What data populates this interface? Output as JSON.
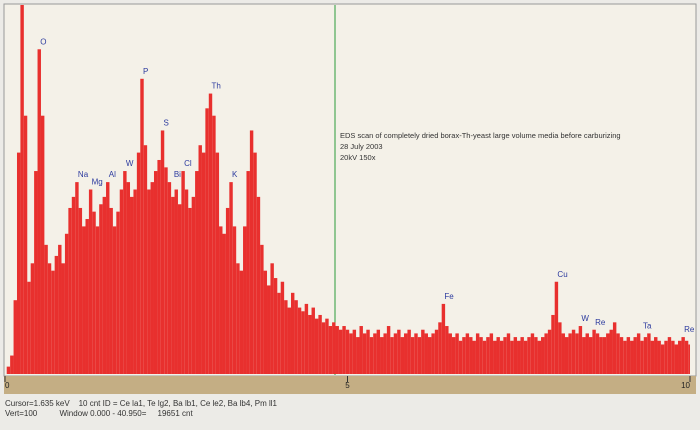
{
  "chart_data": {
    "type": "area",
    "annotation": [
      "EDS scan of completely dried borax-Th-yeast large volume media before carburizing",
      "28 July 2003",
      "20kV 150x"
    ],
    "footer": [
      "Cursor=1.635 keV    10 cnt ID = Ce la1, Te lg2, Ba lb1, Ce le2, Ba lb4, Pm ll1",
      "Vert=100          Window 0.000 - 40.950=     19651 cnt"
    ],
    "xlim": [
      0,
      10
    ],
    "xticks": [
      0,
      5,
      10
    ],
    "ylim": [
      0,
      100
    ],
    "color": "#e8302e",
    "label_color": "#2b3a9e",
    "x": [
      0,
      0.05,
      0.1,
      0.15,
      0.2,
      0.25,
      0.3,
      0.35,
      0.4,
      0.45,
      0.5,
      0.55,
      0.6,
      0.65,
      0.7,
      0.75,
      0.8,
      0.85,
      0.9,
      0.95,
      1,
      1.05,
      1.1,
      1.15,
      1.2,
      1.25,
      1.3,
      1.35,
      1.4,
      1.45,
      1.5,
      1.55,
      1.6,
      1.65,
      1.7,
      1.75,
      1.8,
      1.85,
      1.9,
      1.95,
      2,
      2.05,
      2.1,
      2.15,
      2.2,
      2.25,
      2.3,
      2.35,
      2.4,
      2.45,
      2.5,
      2.55,
      2.6,
      2.65,
      2.7,
      2.75,
      2.8,
      2.85,
      2.9,
      2.95,
      3,
      3.05,
      3.1,
      3.15,
      3.2,
      3.25,
      3.3,
      3.35,
      3.4,
      3.45,
      3.5,
      3.55,
      3.6,
      3.65,
      3.7,
      3.75,
      3.8,
      3.85,
      3.9,
      3.95,
      4,
      4.05,
      4.1,
      4.15,
      4.2,
      4.25,
      4.3,
      4.35,
      4.4,
      4.45,
      4.5,
      4.55,
      4.6,
      4.65,
      4.7,
      4.75,
      4.8,
      4.85,
      4.9,
      4.95,
      5,
      5.05,
      5.1,
      5.15,
      5.2,
      5.25,
      5.3,
      5.35,
      5.4,
      5.45,
      5.5,
      5.55,
      5.6,
      5.65,
      5.7,
      5.75,
      5.8,
      5.85,
      5.9,
      5.95,
      6,
      6.05,
      6.1,
      6.15,
      6.2,
      6.25,
      6.3,
      6.35,
      6.4,
      6.45,
      6.5,
      6.55,
      6.6,
      6.65,
      6.7,
      6.75,
      6.8,
      6.85,
      6.9,
      6.95,
      7,
      7.05,
      7.1,
      7.15,
      7.2,
      7.25,
      7.3,
      7.35,
      7.4,
      7.45,
      7.5,
      7.55,
      7.6,
      7.65,
      7.7,
      7.75,
      7.8,
      7.85,
      7.9,
      7.95,
      8,
      8.05,
      8.1,
      8.15,
      8.2,
      8.25,
      8.3,
      8.35,
      8.4,
      8.45,
      8.5,
      8.55,
      8.6,
      8.65,
      8.7,
      8.75,
      8.8,
      8.85,
      8.9,
      8.95,
      9,
      9.05,
      9.1,
      9.15,
      9.2,
      9.25,
      9.3,
      9.35,
      9.4,
      9.45,
      9.5,
      9.55,
      9.6,
      9.65,
      9.7,
      9.75,
      9.8,
      9.85,
      9.9,
      9.95,
      10
    ],
    "values": [
      0,
      2,
      5,
      20,
      60,
      100,
      70,
      25,
      30,
      55,
      88,
      70,
      35,
      30,
      28,
      32,
      35,
      30,
      38,
      45,
      48,
      52,
      45,
      40,
      42,
      50,
      44,
      40,
      46,
      48,
      52,
      45,
      40,
      44,
      50,
      55,
      52,
      48,
      50,
      60,
      80,
      62,
      50,
      52,
      55,
      58,
      66,
      56,
      52,
      48,
      50,
      46,
      55,
      50,
      45,
      48,
      55,
      62,
      60,
      72,
      76,
      70,
      60,
      40,
      38,
      45,
      52,
      40,
      30,
      28,
      40,
      55,
      66,
      60,
      48,
      35,
      28,
      24,
      30,
      26,
      22,
      25,
      20,
      18,
      22,
      20,
      18,
      17,
      19,
      16,
      18,
      15,
      16,
      14,
      15,
      13,
      14,
      13,
      12,
      13,
      12,
      11,
      12,
      10,
      13,
      11,
      12,
      10,
      11,
      12,
      10,
      11,
      13,
      10,
      11,
      12,
      10,
      11,
      12,
      10,
      11,
      10,
      12,
      11,
      10,
      11,
      12,
      14,
      19,
      13,
      11,
      10,
      11,
      9,
      10,
      11,
      10,
      9,
      11,
      10,
      9,
      10,
      11,
      9,
      10,
      9,
      10,
      11,
      9,
      10,
      9,
      10,
      9,
      10,
      11,
      10,
      9,
      10,
      11,
      12,
      16,
      25,
      14,
      11,
      10,
      11,
      12,
      11,
      13,
      10,
      11,
      10,
      12,
      11,
      10,
      10,
      11,
      12,
      14,
      11,
      10,
      9,
      10,
      9,
      10,
      11,
      9,
      10,
      11,
      9,
      10,
      9,
      8,
      9,
      10,
      9,
      8,
      9,
      10,
      9,
      8
    ],
    "peak_labels": [
      {
        "text": "O",
        "x": 0.5
      },
      {
        "text": "Na",
        "x": 1.05
      },
      {
        "text": "Mg",
        "x": 1.25
      },
      {
        "text": "Al",
        "x": 1.5
      },
      {
        "text": "W",
        "x": 1.75
      },
      {
        "text": "P",
        "x": 2
      },
      {
        "text": "S",
        "x": 2.3
      },
      {
        "text": "Bi",
        "x": 2.45
      },
      {
        "text": "Cl",
        "x": 2.6
      },
      {
        "text": "Th",
        "x": 3
      },
      {
        "text": "K",
        "x": 3.3
      },
      {
        "text": "Fe",
        "x": 6.4
      },
      {
        "text": "Cu",
        "x": 8.05
      },
      {
        "text": "W",
        "x": 8.4
      },
      {
        "text": "Re",
        "x": 8.6
      },
      {
        "text": "Ta",
        "x": 9.3
      },
      {
        "text": "Re",
        "x": 9.9
      }
    ]
  }
}
